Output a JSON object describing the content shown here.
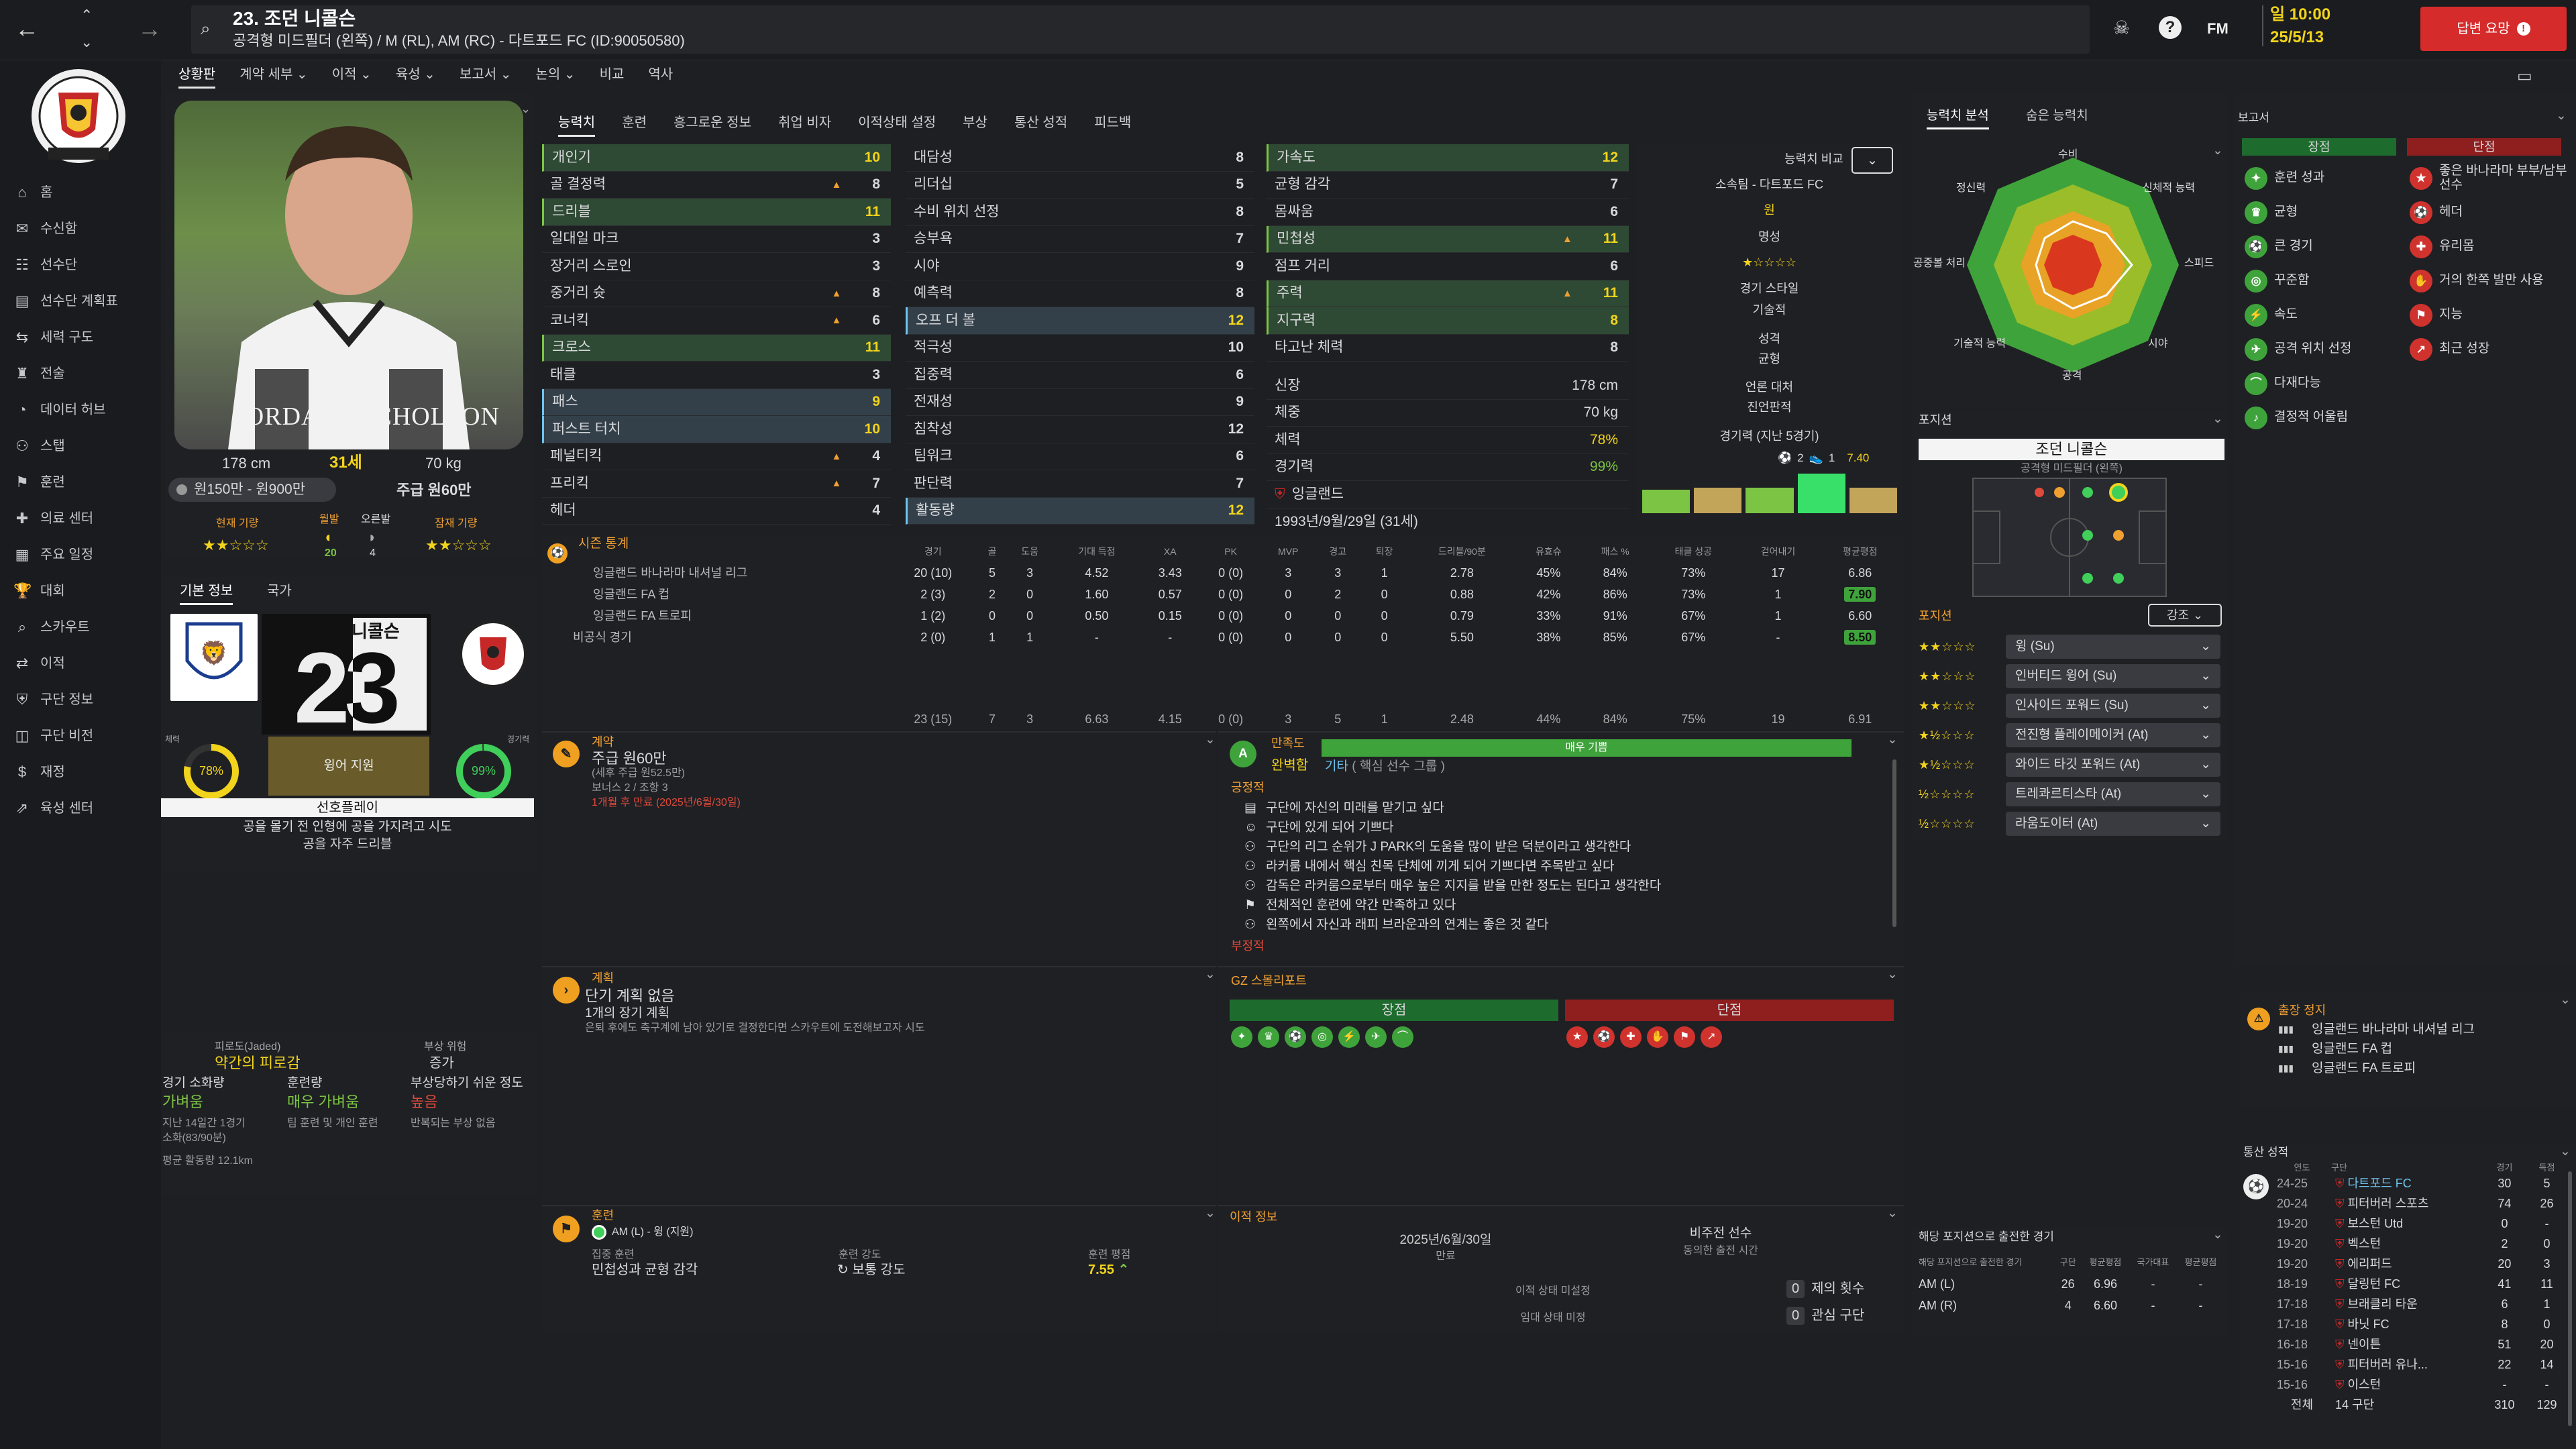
{
  "topbar": {
    "back": "←",
    "forward": "→",
    "title": "23. 조던 니콜슨",
    "subtitle": "공격형 미드필더 (왼쪽) / M (RL), AM (RC) - 다트포드 FC (ID:90050580)",
    "fm": "FM",
    "date_day": "일 10:00",
    "date": "25/5/13",
    "continue": "답변 요망"
  },
  "sidebar": {
    "items": [
      {
        "icon": "⌂",
        "label": "홈"
      },
      {
        "icon": "✉",
        "label": "수신함"
      },
      {
        "icon": "☷",
        "label": "선수단"
      },
      {
        "icon": "▤",
        "label": "선수단 계획표"
      },
      {
        "icon": "⇆",
        "label": "세력 구도"
      },
      {
        "icon": "♜",
        "label": "전술"
      },
      {
        "icon": "◔",
        "label": "데이터 허브"
      },
      {
        "icon": "⚇",
        "label": "스탭"
      },
      {
        "icon": "⚑",
        "label": "훈련"
      },
      {
        "icon": "✚",
        "label": "의료 센터"
      },
      {
        "icon": "▦",
        "label": "주요 일정"
      },
      {
        "icon": "🏆",
        "label": "대회"
      },
      {
        "icon": "⌕",
        "label": "스카우트"
      },
      {
        "icon": "⇄",
        "label": "이적"
      },
      {
        "icon": "⛨",
        "label": "구단 정보"
      },
      {
        "icon": "◫",
        "label": "구단 비전"
      },
      {
        "icon": "$",
        "label": "재정"
      },
      {
        "icon": "⇗",
        "label": "육성 센터"
      }
    ]
  },
  "subnav": [
    "상황판",
    "계약 세부",
    "이적",
    "육성",
    "보고서",
    "논의",
    "비교",
    "역사"
  ],
  "player": {
    "photo_text": "JORDAN NICHOLSON",
    "height": "178 cm",
    "age": "31세",
    "weight": "70 kg",
    "value": "원150만 - 원900만",
    "wage": "주급 원60만",
    "cur_ability": "현재 기량",
    "cur_stars": "★★☆☆☆",
    "morale": "월발",
    "morale_val": "20",
    "pot_ability": "잠재 기량",
    "pot_stars": "★★☆☆☆",
    "injury_label": "오른발",
    "injury_val": "4",
    "tab_basic": "기본 정보",
    "tab_nation": "국가",
    "shirt_name": "니콜슨",
    "number": "23",
    "fitness": "78%",
    "condition": "99%",
    "fitness_l": "체력",
    "condition_l": "경기력",
    "role": "윙어 지원",
    "pref_title": "선호플레이",
    "pref_1": "공을 몰기 전 인형에 공을 가지려고 시도",
    "pref_2": "공을 자주 드리블"
  },
  "fatigue": {
    "title": "피로도(Jaded)",
    "value": "약간의 피로감",
    "injury_risk_l": "부상 위험",
    "injury_risk": "증가",
    "load_l": "경기 소화량",
    "load": "가벼움",
    "train_l": "훈련량",
    "train": "매우 가벼움",
    "prone_l": "부상당하기 쉬운 정도",
    "prone": "높음",
    "n1": "지난 14일간 1경기",
    "n2": "소화(83/90분)",
    "n3": "팀 훈련 및 개인 훈련",
    "n4": "반복되는 부상 없음",
    "dist": "평균 활동량 12.1km"
  },
  "attr_tabs": [
    "능력치",
    "훈련",
    "흥그로운 정보",
    "취업 비자",
    "이적상태 설정",
    "부상",
    "통산 성적",
    "피드백"
  ],
  "attrs_tech": [
    {
      "n": "개인기",
      "v": "10",
      "up": "",
      "hl": "g"
    },
    {
      "n": "골 결정력",
      "v": "8",
      "up": "▲",
      "hl": ""
    },
    {
      "n": "드리블",
      "v": "11",
      "up": "",
      "hl": "g"
    },
    {
      "n": "일대일 마크",
      "v": "3",
      "up": "",
      "hl": ""
    },
    {
      "n": "장거리 스로인",
      "v": "3",
      "up": "",
      "hl": ""
    },
    {
      "n": "중거리 슛",
      "v": "8",
      "up": "▲",
      "hl": ""
    },
    {
      "n": "코너킥",
      "v": "6",
      "up": "▲",
      "hl": ""
    },
    {
      "n": "크로스",
      "v": "11",
      "up": "",
      "hl": "g"
    },
    {
      "n": "태클",
      "v": "3",
      "up": "",
      "hl": ""
    },
    {
      "n": "패스",
      "v": "9",
      "up": "",
      "hl": "b"
    },
    {
      "n": "퍼스트 터치",
      "v": "10",
      "up": "",
      "hl": "b"
    },
    {
      "n": "페널티킥",
      "v": "4",
      "up": "▲",
      "hl": ""
    },
    {
      "n": "프리킥",
      "v": "7",
      "up": "▲",
      "hl": ""
    },
    {
      "n": "헤더",
      "v": "4",
      "up": "",
      "hl": ""
    }
  ],
  "attrs_ment": [
    {
      "n": "대담성",
      "v": "8",
      "hl": ""
    },
    {
      "n": "리더십",
      "v": "5",
      "hl": ""
    },
    {
      "n": "수비 위치 선정",
      "v": "8",
      "hl": ""
    },
    {
      "n": "승부욕",
      "v": "7",
      "hl": ""
    },
    {
      "n": "시야",
      "v": "9",
      "hl": ""
    },
    {
      "n": "예측력",
      "v": "8",
      "hl": ""
    },
    {
      "n": "오프 더 볼",
      "v": "12",
      "hl": "b"
    },
    {
      "n": "적극성",
      "v": "10",
      "hl": ""
    },
    {
      "n": "집중력",
      "v": "6",
      "hl": ""
    },
    {
      "n": "전재성",
      "v": "9",
      "hl": ""
    },
    {
      "n": "침착성",
      "v": "12",
      "hl": ""
    },
    {
      "n": "팀워크",
      "v": "6",
      "hl": ""
    },
    {
      "n": "판단력",
      "v": "7",
      "hl": ""
    },
    {
      "n": "활동량",
      "v": "12",
      "hl": "b"
    }
  ],
  "attrs_phys": [
    {
      "n": "가속도",
      "v": "12",
      "up": "",
      "hl": "g"
    },
    {
      "n": "균형 감각",
      "v": "7",
      "up": "",
      "hl": ""
    },
    {
      "n": "몸싸움",
      "v": "6",
      "up": "",
      "hl": ""
    },
    {
      "n": "민첩성",
      "v": "11",
      "up": "▲",
      "hl": "g"
    },
    {
      "n": "점프 거리",
      "v": "6",
      "up": "",
      "hl": ""
    },
    {
      "n": "주력",
      "v": "11",
      "up": "▲",
      "hl": "g"
    },
    {
      "n": "지구력",
      "v": "8",
      "up": "",
      "hl": "g"
    },
    {
      "n": "타고난 체력",
      "v": "8",
      "up": "",
      "hl": ""
    }
  ],
  "bio": {
    "height_l": "신장",
    "height": "178 cm",
    "weight_l": "체중",
    "weight": "70 kg",
    "fit_l": "체력",
    "fit": "78%",
    "cond_l": "경기력",
    "cond": "99%",
    "nation": "잉글랜드",
    "dob": "1993년/9월/29일 (31세)"
  },
  "compare": {
    "btn": "능력치 비교",
    "club": "소속팀 - 다트포드 FC",
    "wage": "원",
    "rep": "명성",
    "rep_stars": "★☆☆☆☆",
    "style": "경기 스타일",
    "tech": "기술적",
    "pers": "성격",
    "pers_v": "균형",
    "media": "언론 대처",
    "media_v": "진언판적",
    "form": "경기력 (지난 5경기)",
    "form_goals": "2",
    "form_assist": "1",
    "form_rating": "7.40",
    "form_vals": [
      0.5,
      0.55,
      0.55,
      0.85,
      0.55
    ]
  },
  "season": {
    "title": "시즌 통계",
    "headers": [
      "경기",
      "골",
      "도움",
      "기대 득점",
      "XA",
      "PK",
      "MVP",
      "경고",
      "퇴장",
      "드리블/90분",
      "유효슈",
      "패스 %",
      "태클 성공",
      "걷어내기",
      "평균평점"
    ],
    "rows": [
      {
        "c": "잉글랜드 바나라마 내셔널 리그",
        "v": [
          "20 (10)",
          "5",
          "3",
          "4.52",
          "3.43",
          "0 (0)",
          "3",
          "3",
          "1",
          "2.78",
          "45%",
          "84%",
          "73%",
          "17",
          "6.86"
        ],
        "chip": ""
      },
      {
        "c": "잉글랜드 FA 컵",
        "v": [
          "2 (3)",
          "2",
          "0",
          "1.60",
          "0.57",
          "0 (0)",
          "0",
          "2",
          "0",
          "0.88",
          "42%",
          "86%",
          "73%",
          "1",
          "7.90"
        ],
        "chip": "g"
      },
      {
        "c": "잉글랜드 FA 트로피",
        "v": [
          "1 (2)",
          "0",
          "0",
          "0.50",
          "0.15",
          "0 (0)",
          "0",
          "0",
          "0",
          "0.79",
          "33%",
          "91%",
          "67%",
          "1",
          "6.60"
        ],
        "chip": ""
      },
      {
        "c": "비공식 경기",
        "v": [
          "2 (0)",
          "1",
          "1",
          "-",
          "-",
          "0 (0)",
          "0",
          "0",
          "0",
          "5.50",
          "38%",
          "85%",
          "67%",
          "-",
          "8.50"
        ],
        "chip": "g"
      }
    ],
    "total": [
      "23 (15)",
      "7",
      "3",
      "6.63",
      "4.15",
      "0 (0)",
      "3",
      "5",
      "1",
      "2.48",
      "44%",
      "84%",
      "75%",
      "19",
      "6.91"
    ]
  },
  "contract": {
    "title": "계약",
    "wage": "주급 원60만",
    "note": "(세후 주급 원52.5만)",
    "bonus": "보너스 2 / 조항 3",
    "expiry": "1개월 후 만료 (2025년/6월/30일)"
  },
  "satisfaction": {
    "title": "만족도",
    "bar": "매우 기쁨",
    "happy": "완벽함",
    "role": "기타",
    "role2": "( 핵심 선수 그룹 )",
    "pos_title": "긍정적",
    "neg_title": "부정적",
    "items": [
      "구단에 자신의 미래를 맡기고 싶다",
      "구단에 있게 되어 기쁘다",
      "구단의 리그 순위가 J PARK의 도움을 많이 받은 덕분이라고 생각한다",
      "라커룸 내에서 핵심 친목 단체에 끼게 되어 기쁘다면 주목받고 싶다",
      "감독은 라커룸으로부터 매우 높은 지지를 받을 만한 정도는 된다고 생각한다",
      "전체적인 훈련에 약간 만족하고 있다",
      "왼쪽에서 자신과 래피 브라운과의 연계는 좋은 것 같다"
    ]
  },
  "plans": {
    "title": "계획",
    "short": "단기 계획 없음",
    "long": "1개의 장기 계획",
    "note": "은퇴 후에도 축구계에 남아 있기로 결정한다면 스카우트에 도전해보고자 시도"
  },
  "scout": {
    "title": "GZ 스몰리포트",
    "pro": "장점",
    "con": "단점"
  },
  "training": {
    "title": "훈련",
    "role": "AM (L) - 윙 (지원)",
    "focus_l": "집중 훈련",
    "focus": "민첩성과 균형 감각",
    "int_l": "훈련 강도",
    "int": "보통 강도",
    "rate_l": "훈련 평점",
    "rate": "7.55"
  },
  "transfer": {
    "title": "이적 정보",
    "date": "2025년/6월/30일",
    "date_l": "만료",
    "non": "비주전 선수",
    "non_l": "동의한 출전 시간",
    "status": "이적 상태 미설정",
    "loan": "임대 상태 미정",
    "offers": "제의 횟수",
    "offers_v": "0",
    "interest": "관심 구단",
    "interest_v": "0"
  },
  "analysis": {
    "tab1": "능력치 분석",
    "tab2": "숨은 능력치",
    "labels": [
      "수비",
      "신체적 능력",
      "스피드",
      "시야",
      "공격",
      "기술적 능력",
      "공중볼 처리",
      "정신력"
    ]
  },
  "position": {
    "title": "포지션",
    "name": "조던 니콜슨",
    "role": "공격형 미드필더 (왼쪽)",
    "roles_title": "포지션",
    "filter": "강조",
    "roles": [
      {
        "s": "★★☆☆☆",
        "n": "윙 (Su)"
      },
      {
        "s": "★★☆☆☆",
        "n": "인버티드 윙어 (Su)"
      },
      {
        "s": "★★☆☆☆",
        "n": "인사이드 포워드 (Su)"
      },
      {
        "s": "★½☆☆☆",
        "n": "전진형 플레이메이커 (At)"
      },
      {
        "s": "★½☆☆☆",
        "n": "와이드 타깃 포워드 (At)"
      },
      {
        "s": "½☆☆☆☆",
        "n": "트레콰르티스타 (At)"
      },
      {
        "s": "½☆☆☆☆",
        "n": "라움도이터 (At)"
      }
    ],
    "played_title": "해당 포지션으로 출전한 경기",
    "played_h": [
      "해당 포지션으로 출전한 경기",
      "구단",
      "평균평점",
      "국가대표",
      "평균평점"
    ],
    "played": [
      {
        "p": "AM (L)",
        "c": "26",
        "r": "6.96",
        "n": "-",
        "nr": "-"
      },
      {
        "p": "AM (R)",
        "c": "4",
        "r": "6.60",
        "n": "-",
        "nr": "-"
      }
    ]
  },
  "report": {
    "title": "보고서",
    "pro": "장점",
    "con": "단점",
    "pros": [
      "훈련 성과",
      "균형",
      "큰 경기",
      "꾸준함",
      "속도",
      "공격 위치 선정",
      "다재다능",
      "결정적 어울림"
    ],
    "cons": [
      "좋은 바나라마 부부/남부 선수",
      "헤더",
      "유리몸",
      "거의 한쪽 발만 사용",
      "지능",
      "최근 성장"
    ]
  },
  "ban": {
    "title": "출장 정지",
    "items": [
      "잉글랜드 바나라마 내셔널 리그",
      "잉글랜드 FA 컵",
      "잉글랜드 FA 트로피"
    ]
  },
  "career": {
    "title": "통산 성적",
    "h": [
      "연도",
      "구단",
      "경기",
      "득점"
    ],
    "rows": [
      [
        "24-25",
        "다트포드 FC",
        "30",
        "5"
      ],
      [
        "20-24",
        "피터버러 스포츠",
        "74",
        "26"
      ],
      [
        "19-20",
        "보스턴 Utd",
        "0",
        "-"
      ],
      [
        "19-20",
        "벡스턴",
        "2",
        "0"
      ],
      [
        "19-20",
        "에리퍼드",
        "20",
        "3"
      ],
      [
        "18-19",
        "달링턴 FC",
        "41",
        "11"
      ],
      [
        "17-18",
        "브래클리 타운",
        "6",
        "1"
      ],
      [
        "17-18",
        "바닛 FC",
        "8",
        "0"
      ],
      [
        "16-18",
        "넨이튼",
        "51",
        "20"
      ],
      [
        "15-16",
        "피터버러 유나...",
        "22",
        "14"
      ],
      [
        "15-16",
        "이스턴",
        "-",
        "-"
      ]
    ],
    "total": [
      "전체",
      "14 구단",
      "310",
      "129"
    ]
  },
  "colors": {
    "accent": "#f2d41c",
    "green": "#3fa33b",
    "red": "#d0332e",
    "highlight": "#6ec4ee"
  }
}
